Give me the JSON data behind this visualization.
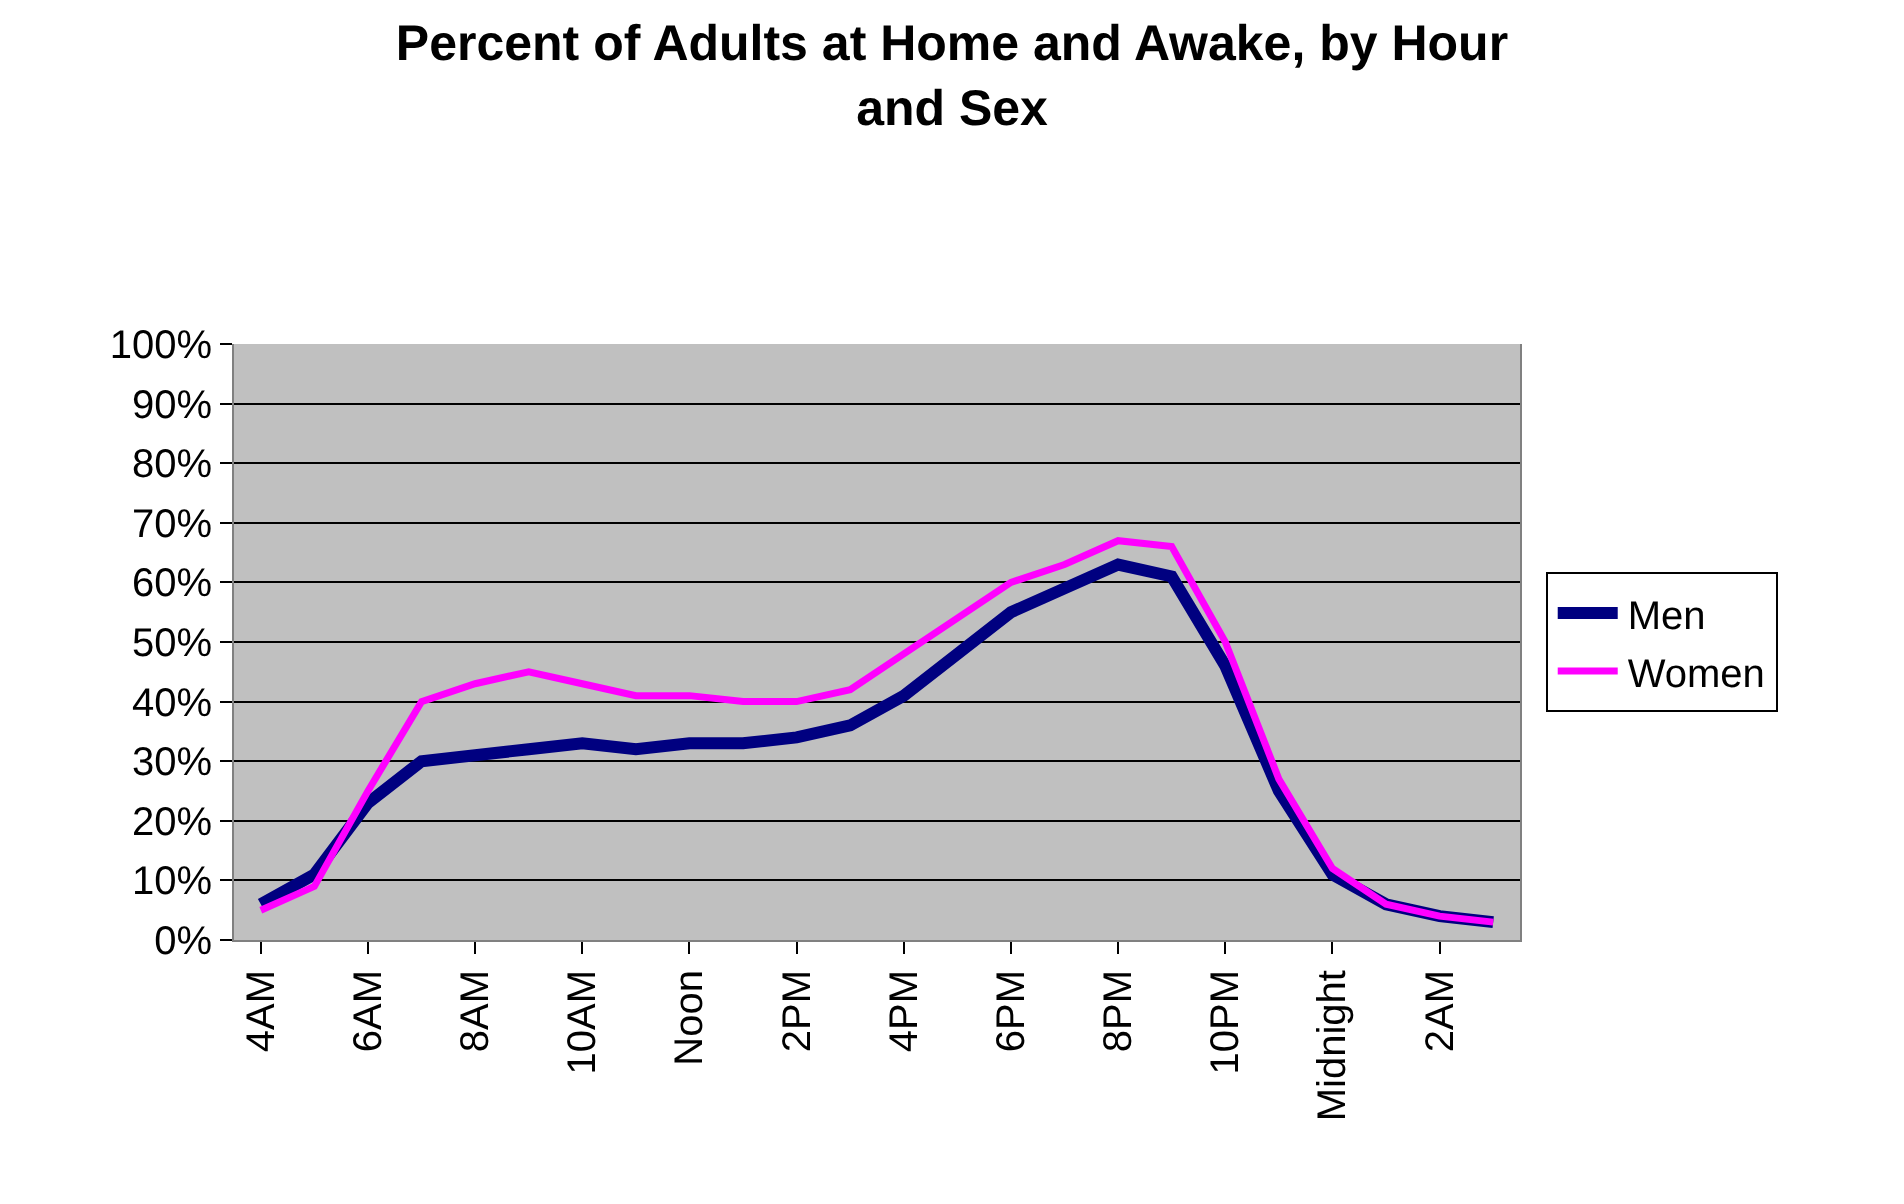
{
  "chart_data": {
    "type": "line",
    "title": "Percent of Adults at Home and Awake, by Hour and Sex",
    "categories": [
      "4AM",
      null,
      "6AM",
      null,
      "8AM",
      null,
      "10AM",
      null,
      "Noon",
      null,
      "2PM",
      null,
      "4PM",
      null,
      "6PM",
      null,
      "8PM",
      null,
      "10PM",
      null,
      "Midnight",
      null,
      "2AM",
      null
    ],
    "series": [
      {
        "name": "Men",
        "color": "#000080",
        "values": [
          6,
          11,
          23,
          30,
          31,
          32,
          33,
          32,
          33,
          33,
          34,
          36,
          41,
          48,
          55,
          59,
          63,
          61,
          46,
          25,
          11,
          6,
          4,
          3
        ]
      },
      {
        "name": "Women",
        "color": "#ff00ff",
        "values": [
          5,
          9,
          25,
          40,
          43,
          45,
          43,
          41,
          41,
          40,
          40,
          42,
          48,
          54,
          60,
          63,
          67,
          66,
          50,
          27,
          12,
          6,
          4,
          3
        ]
      }
    ],
    "ylim": [
      0,
      100
    ],
    "yticks": [
      {
        "value": 0,
        "label": "0%"
      },
      {
        "value": 10,
        "label": "10%"
      },
      {
        "value": 20,
        "label": "20%"
      },
      {
        "value": 30,
        "label": "30%"
      },
      {
        "value": 40,
        "label": "40%"
      },
      {
        "value": 50,
        "label": "50%"
      },
      {
        "value": 60,
        "label": "60%"
      },
      {
        "value": 70,
        "label": "70%"
      },
      {
        "value": 80,
        "label": "80%"
      },
      {
        "value": 90,
        "label": "90%"
      },
      {
        "value": 100,
        "label": "100%"
      }
    ],
    "grid": "y",
    "legend": "right",
    "marker": "none",
    "line_style": "solid"
  }
}
